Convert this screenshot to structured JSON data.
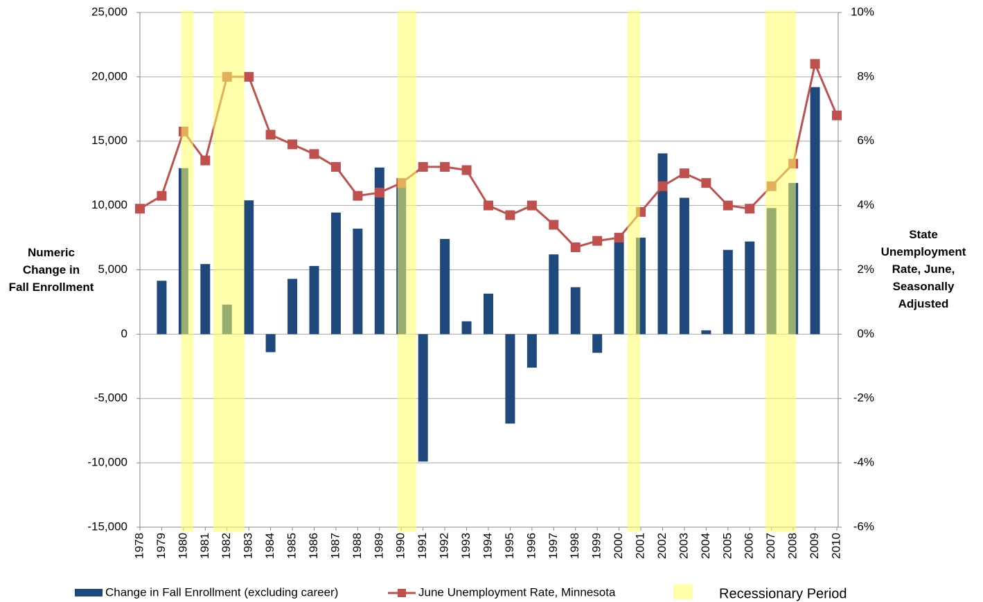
{
  "chart_data": {
    "type": "bar-line",
    "y_label": [
      "Numeric",
      "Change in",
      "Fall Enrollment"
    ],
    "y2_label": [
      "State",
      "Unemployment",
      "Rate, June,",
      "Seasonally",
      "Adjusted"
    ],
    "x": [
      1978,
      1979,
      1980,
      1981,
      1982,
      1983,
      1984,
      1985,
      1986,
      1987,
      1988,
      1989,
      1990,
      1991,
      1992,
      1993,
      1994,
      1995,
      1996,
      1997,
      1998,
      1999,
      2000,
      2001,
      2002,
      2003,
      2004,
      2005,
      2006,
      2007,
      2008,
      2009,
      2010
    ],
    "xlim": [
      1978,
      2010
    ],
    "series": [
      {
        "name": "Change in Fall Enrollment (excluding career)",
        "type": "bar",
        "color": "#1f497d",
        "values": [
          null,
          4150,
          12900,
          5450,
          2300,
          10400,
          -1400,
          4300,
          5300,
          9450,
          8200,
          12950,
          11500,
          -9900,
          7400,
          1000,
          3150,
          -6950,
          -2600,
          6200,
          3650,
          -1450,
          7300,
          7500,
          14050,
          10600,
          300,
          6550,
          7200,
          9800,
          11750,
          19200,
          null
        ]
      },
      {
        "name": "June Unemployment Rate, Minnesota",
        "type": "line",
        "axis": "y2",
        "color": "#c0504d",
        "values": [
          3.9,
          4.3,
          6.3,
          5.4,
          8.0,
          8.0,
          6.2,
          5.9,
          5.6,
          5.2,
          4.3,
          4.4,
          4.7,
          5.2,
          5.2,
          5.1,
          4.0,
          3.7,
          4.0,
          3.4,
          2.7,
          2.9,
          3.0,
          3.8,
          4.6,
          5.0,
          4.7,
          4.0,
          3.9,
          4.6,
          5.3,
          8.4,
          6.8
        ]
      }
    ],
    "recessions": {
      "name": "Recessionary Period",
      "color": "#ffff66",
      "periods": [
        [
          1979.9,
          1980.45
        ],
        [
          1981.37,
          1982.8
        ],
        [
          1989.83,
          1990.69
        ],
        [
          2000.39,
          2000.96
        ],
        [
          2006.72,
          2008.12
        ]
      ]
    },
    "ylim": [
      -15000,
      25000
    ],
    "yticks": [
      {
        "value": -15000,
        "label": "-15,000"
      },
      {
        "value": -10000,
        "label": "-10,000"
      },
      {
        "value": -5000,
        "label": "-5,000"
      },
      0,
      {
        "value": 5000,
        "label": "5,000"
      },
      {
        "value": 10000,
        "label": "10,000"
      },
      {
        "value": 15000,
        "label": "15,000"
      },
      {
        "value": 20000,
        "label": "20,000"
      },
      {
        "value": 25000,
        "label": "25,000"
      }
    ],
    "y2lim": [
      -6,
      10
    ],
    "y2ticks": [
      {
        "value": -6,
        "label": "-6%"
      },
      {
        "value": -4,
        "label": "-4%"
      },
      {
        "value": -2,
        "label": "-2%"
      },
      {
        "value": 0,
        "label": "0%"
      },
      {
        "value": 2,
        "label": "2%"
      },
      {
        "value": 4,
        "label": "4%"
      },
      {
        "value": 6,
        "label": "6%"
      },
      {
        "value": 8,
        "label": "8%"
      },
      {
        "value": 10,
        "label": "10%"
      }
    ],
    "grid": true
  }
}
